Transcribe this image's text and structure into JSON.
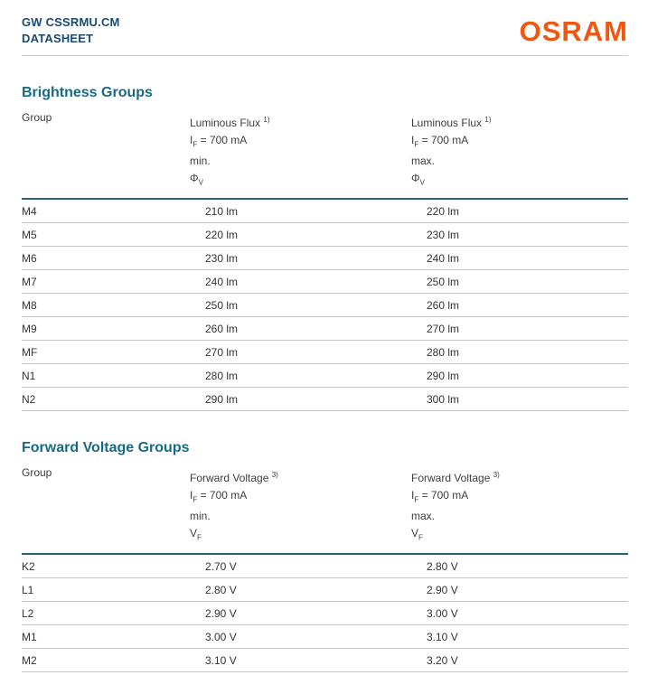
{
  "header": {
    "product": "GW CSSRMU.CM",
    "doc_type": "DATASHEET",
    "brand": "OSRAM"
  },
  "colors": {
    "brand_orange": "#ef5713",
    "title_blue": "#1a4a74",
    "section_teal": "#176a85",
    "table_rule_dark": "#2e6076",
    "row_rule_gray": "#c6c6c6"
  },
  "brightness": {
    "title": "Brightness Groups",
    "columns": {
      "group": "Group",
      "quantity": "Luminous Flux",
      "footnote": "1)",
      "condition_symbol": "I",
      "condition_sub": "F",
      "condition_value": "= 700 mA",
      "min": "min.",
      "max": "max.",
      "unit_symbol": "Φ",
      "unit_sub": "V"
    },
    "rows": [
      {
        "group": "M4",
        "min": "210 lm",
        "max": "220 lm"
      },
      {
        "group": "M5",
        "min": "220 lm",
        "max": "230 lm"
      },
      {
        "group": "M6",
        "min": "230 lm",
        "max": "240 lm"
      },
      {
        "group": "M7",
        "min": "240 lm",
        "max": "250 lm"
      },
      {
        "group": "M8",
        "min": "250 lm",
        "max": "260 lm"
      },
      {
        "group": "M9",
        "min": "260 lm",
        "max": "270 lm"
      },
      {
        "group": "MF",
        "min": "270 lm",
        "max": "280 lm"
      },
      {
        "group": "N1",
        "min": "280 lm",
        "max": "290 lm"
      },
      {
        "group": "N2",
        "min": "290 lm",
        "max": "300 lm"
      }
    ]
  },
  "forward_voltage": {
    "title": "Forward Voltage Groups",
    "columns": {
      "group": "Group",
      "quantity": "Forward Voltage",
      "footnote": "3)",
      "condition_symbol": "I",
      "condition_sub": "F",
      "condition_value": "= 700 mA",
      "min": "min.",
      "max": "max.",
      "unit_symbol": "V",
      "unit_sub": "F"
    },
    "rows": [
      {
        "group": "K2",
        "min": "2.70 V",
        "max": "2.80 V"
      },
      {
        "group": "L1",
        "min": "2.80 V",
        "max": "2.90 V"
      },
      {
        "group": "L2",
        "min": "2.90 V",
        "max": "3.00 V"
      },
      {
        "group": "M1",
        "min": "3.00 V",
        "max": "3.10 V"
      },
      {
        "group": "M2",
        "min": "3.10 V",
        "max": "3.20 V"
      }
    ]
  }
}
